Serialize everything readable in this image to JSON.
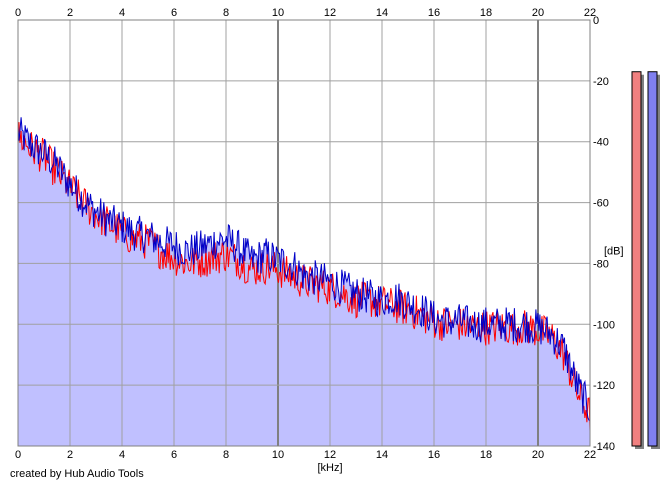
{
  "footer": {
    "credit": "created by Hub Audio Tools"
  },
  "chart_data": {
    "type": "area",
    "xlabel": "[kHz]",
    "ylabel": "[dB]",
    "xlim": [
      0,
      22
    ],
    "ylim": [
      -140,
      0
    ],
    "x_ticks": [
      0,
      2,
      4,
      6,
      8,
      10,
      12,
      14,
      16,
      18,
      20,
      22
    ],
    "y_ticks": [
      0,
      -20,
      -40,
      -60,
      -80,
      -100,
      -120,
      -140
    ],
    "grid": true,
    "colors": {
      "fill": "#c0c0ff",
      "left": "#ff0000",
      "right": "#0000c8",
      "grid": "#a0a0a0",
      "major_grid": "#808080"
    },
    "series": [
      {
        "x": [
          0,
          0.5,
          1,
          1.5,
          2,
          2.5,
          3,
          3.5,
          4,
          4.5,
          5,
          5.5,
          6,
          6.5,
          7,
          7.5,
          8,
          8.5,
          9,
          9.5,
          10,
          10.5,
          11,
          11.5,
          12,
          12.5,
          13,
          13.5,
          14,
          14.5,
          15,
          15.5,
          16,
          16.5,
          17,
          17.5,
          18,
          18.5,
          19,
          19.5,
          20,
          20.5,
          21,
          21.5,
          22
        ],
        "values": [
          -38,
          -42,
          -45,
          -50,
          -55,
          -60,
          -64,
          -67,
          -70,
          -72,
          -73,
          -76,
          -78,
          -80,
          -79,
          -78,
          -77,
          -79,
          -82,
          -81,
          -82,
          -84,
          -86,
          -87,
          -88,
          -90,
          -92,
          -92,
          -93,
          -94,
          -95,
          -97,
          -99,
          -100,
          -100,
          -101,
          -101,
          -101,
          -101,
          -101,
          -102,
          -104,
          -110,
          -122,
          -130
        ]
      },
      {
        "x": [
          0,
          0.5,
          1,
          1.5,
          2,
          2.5,
          3,
          3.5,
          4,
          4.5,
          5,
          5.5,
          6,
          6.5,
          7,
          7.5,
          8,
          8.5,
          9,
          9.5,
          10,
          10.5,
          11,
          11.5,
          12,
          12.5,
          13,
          13.5,
          14,
          14.5,
          15,
          15.5,
          16,
          16.5,
          17,
          17.5,
          18,
          18.5,
          19,
          19.5,
          20,
          20.5,
          21,
          21.5,
          22
        ],
        "values": [
          -37,
          -41,
          -44,
          -48,
          -54,
          -59,
          -63,
          -66,
          -68,
          -70,
          -71,
          -73,
          -74,
          -76,
          -75,
          -73,
          -72,
          -75,
          -79,
          -77,
          -79,
          -80,
          -84,
          -85,
          -86,
          -88,
          -90,
          -91,
          -92,
          -91,
          -93,
          -95,
          -98,
          -99,
          -99,
          -100,
          -100,
          -100,
          -100,
          -100,
          -101,
          -103,
          -108,
          -120,
          -128
        ]
      }
    ],
    "meters": [
      {
        "value": -17,
        "color": "#f08080"
      },
      {
        "value": -17,
        "color": "#8080f0"
      }
    ]
  }
}
